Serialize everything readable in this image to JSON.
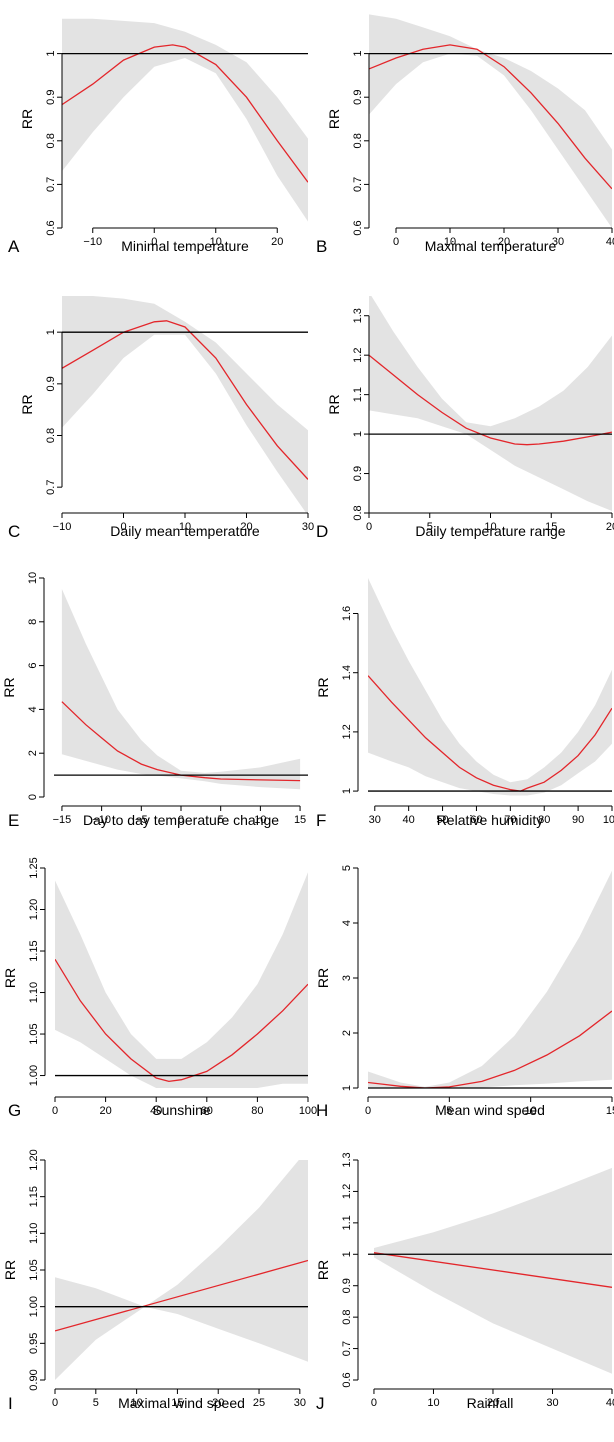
{
  "chart_data": [
    {
      "panel_label": "A",
      "type": "line",
      "xlabel": "Minimal temperature",
      "ylabel": "RR",
      "xlim": [
        -15,
        25
      ],
      "ylim": [
        0.6,
        1.1
      ],
      "reference_y": 1.0,
      "xticks": [
        -10,
        0,
        10,
        20
      ],
      "yticks": [
        0.6,
        0.7,
        0.8,
        0.9,
        1.0
      ],
      "series": [
        {
          "role": "estimate",
          "color": "#e3262b",
          "x": [
            -15,
            -10,
            -5,
            0,
            3,
            5,
            10,
            15,
            20,
            25
          ],
          "y": [
            0.883,
            0.93,
            0.985,
            1.015,
            1.02,
            1.015,
            0.975,
            0.9,
            0.8,
            0.705
          ]
        },
        {
          "role": "ci_upper",
          "color": "#e3e3e3",
          "x": [
            -15,
            -10,
            -5,
            0,
            5,
            10,
            15,
            20,
            25
          ],
          "y": [
            1.08,
            1.08,
            1.075,
            1.07,
            1.05,
            1.02,
            0.98,
            0.9,
            0.805
          ]
        },
        {
          "role": "ci_lower",
          "color": "#e3e3e3",
          "x": [
            -15,
            -10,
            -5,
            0,
            5,
            10,
            15,
            20,
            25
          ],
          "y": [
            0.73,
            0.82,
            0.9,
            0.97,
            0.99,
            0.955,
            0.85,
            0.72,
            0.615
          ]
        }
      ]
    },
    {
      "panel_label": "B",
      "type": "line",
      "xlabel": "Maximal temperature",
      "ylabel": "RR",
      "xlim": [
        -5,
        40
      ],
      "ylim": [
        0.6,
        1.1
      ],
      "reference_y": 1.0,
      "xticks": [
        0,
        10,
        20,
        30,
        40
      ],
      "yticks": [
        0.6,
        0.7,
        0.8,
        0.9,
        1.0
      ],
      "series": [
        {
          "role": "estimate",
          "color": "#e3262b",
          "x": [
            -5,
            0,
            5,
            10,
            15,
            20,
            25,
            30,
            35,
            40
          ],
          "y": [
            0.965,
            0.99,
            1.01,
            1.02,
            1.01,
            0.97,
            0.91,
            0.84,
            0.76,
            0.69
          ]
        },
        {
          "role": "ci_upper",
          "color": "#e3e3e3",
          "x": [
            -5,
            0,
            5,
            10,
            15,
            20,
            25,
            30,
            35,
            40
          ],
          "y": [
            1.09,
            1.08,
            1.06,
            1.04,
            1.01,
            0.99,
            0.96,
            0.92,
            0.87,
            0.78
          ]
        },
        {
          "role": "ci_lower",
          "color": "#e3e3e3",
          "x": [
            -5,
            0,
            5,
            10,
            15,
            20,
            25,
            30,
            35,
            40
          ],
          "y": [
            0.86,
            0.93,
            0.98,
            1.0,
            0.995,
            0.95,
            0.87,
            0.78,
            0.69,
            0.6
          ]
        }
      ]
    },
    {
      "panel_label": "C",
      "type": "line",
      "xlabel": "Daily mean temperature",
      "ylabel": "RR",
      "xlim": [
        -10,
        30
      ],
      "ylim": [
        0.65,
        1.07
      ],
      "reference_y": 1.0,
      "xticks": [
        -10,
        0,
        10,
        20,
        30
      ],
      "yticks": [
        0.7,
        0.8,
        0.9,
        1.0
      ],
      "series": [
        {
          "role": "estimate",
          "color": "#e3262b",
          "x": [
            -10,
            -5,
            0,
            5,
            7,
            10,
            15,
            20,
            25,
            30
          ],
          "y": [
            0.93,
            0.965,
            1.0,
            1.02,
            1.022,
            1.01,
            0.95,
            0.86,
            0.78,
            0.715
          ]
        },
        {
          "role": "ci_upper",
          "color": "#e3e3e3",
          "x": [
            -10,
            -5,
            0,
            5,
            10,
            15,
            20,
            25,
            30
          ],
          "y": [
            1.07,
            1.07,
            1.065,
            1.055,
            1.02,
            0.98,
            0.92,
            0.86,
            0.81
          ]
        },
        {
          "role": "ci_lower",
          "color": "#e3e3e3",
          "x": [
            -10,
            -5,
            0,
            5,
            10,
            15,
            20,
            25,
            30
          ],
          "y": [
            0.815,
            0.88,
            0.95,
            0.995,
            0.995,
            0.92,
            0.82,
            0.73,
            0.645
          ]
        }
      ]
    },
    {
      "panel_label": "D",
      "type": "line",
      "xlabel": "Daily temperature range",
      "ylabel": "RR",
      "xlim": [
        0,
        20
      ],
      "ylim": [
        0.8,
        1.35
      ],
      "reference_y": 1.0,
      "xticks": [
        0,
        5,
        10,
        15,
        20
      ],
      "yticks": [
        0.8,
        0.9,
        1.0,
        1.1,
        1.2,
        1.3
      ],
      "series": [
        {
          "role": "estimate",
          "color": "#e3262b",
          "x": [
            0,
            2,
            4,
            6,
            8,
            10,
            12,
            13,
            14,
            16,
            18,
            20
          ],
          "y": [
            1.2,
            1.15,
            1.1,
            1.055,
            1.015,
            0.99,
            0.975,
            0.973,
            0.975,
            0.982,
            0.993,
            1.005
          ]
        },
        {
          "role": "ci_upper",
          "color": "#e3e3e3",
          "x": [
            0,
            2,
            4,
            6,
            8,
            10,
            12,
            14,
            16,
            18,
            20
          ],
          "y": [
            1.36,
            1.26,
            1.17,
            1.09,
            1.03,
            1.02,
            1.04,
            1.07,
            1.11,
            1.17,
            1.25
          ]
        },
        {
          "role": "ci_lower",
          "color": "#e3e3e3",
          "x": [
            0,
            2,
            4,
            6,
            8,
            10,
            12,
            14,
            16,
            18,
            20
          ],
          "y": [
            1.06,
            1.05,
            1.04,
            1.02,
            1.0,
            0.96,
            0.92,
            0.89,
            0.86,
            0.83,
            0.805
          ]
        }
      ]
    },
    {
      "panel_label": "E",
      "type": "line",
      "xlabel": "Day to day temperature change",
      "ylabel": "RR",
      "xlim": [
        -16,
        16
      ],
      "ylim": [
        0,
        10
      ],
      "reference_y": 1.0,
      "xticks": [
        -15,
        -10,
        -5,
        0,
        5,
        10,
        15
      ],
      "yticks": [
        0,
        2,
        4,
        6,
        8,
        10
      ],
      "series": [
        {
          "role": "estimate",
          "color": "#e3262b",
          "x": [
            -15,
            -12,
            -10,
            -8,
            -5,
            -3,
            0,
            3,
            5,
            10,
            15
          ],
          "y": [
            4.35,
            3.3,
            2.7,
            2.1,
            1.5,
            1.25,
            1.0,
            0.88,
            0.82,
            0.78,
            0.75
          ]
        },
        {
          "role": "ci_upper",
          "color": "#e3e3e3",
          "x": [
            -15,
            -12,
            -10,
            -8,
            -5,
            -3,
            0,
            3,
            5,
            10,
            15
          ],
          "y": [
            9.5,
            7.0,
            5.5,
            4.0,
            2.6,
            1.9,
            1.2,
            1.1,
            1.15,
            1.35,
            1.75
          ]
        },
        {
          "role": "ci_lower",
          "color": "#e3e3e3",
          "x": [
            -15,
            -12,
            -10,
            -8,
            -5,
            -3,
            0,
            3,
            5,
            10,
            15
          ],
          "y": [
            1.95,
            1.65,
            1.45,
            1.25,
            1.05,
            0.98,
            0.85,
            0.72,
            0.6,
            0.45,
            0.35
          ]
        }
      ]
    },
    {
      "panel_label": "F",
      "type": "line",
      "xlabel": "Relative humidity",
      "ylabel": "RR",
      "xlim": [
        28,
        100
      ],
      "ylim": [
        0.98,
        1.72
      ],
      "reference_y": 1.0,
      "xticks": [
        30,
        40,
        50,
        60,
        70,
        80,
        90,
        100
      ],
      "yticks": [
        1.0,
        1.2,
        1.4,
        1.6
      ],
      "series": [
        {
          "role": "estimate",
          "color": "#e3262b",
          "x": [
            28,
            35,
            40,
            45,
            50,
            55,
            60,
            65,
            70,
            73,
            75,
            80,
            85,
            90,
            95,
            100
          ],
          "y": [
            1.39,
            1.3,
            1.24,
            1.18,
            1.13,
            1.08,
            1.045,
            1.02,
            1.005,
            1.0,
            1.01,
            1.03,
            1.07,
            1.12,
            1.19,
            1.28
          ]
        },
        {
          "role": "ci_upper",
          "color": "#e3e3e3",
          "x": [
            28,
            35,
            40,
            45,
            50,
            55,
            60,
            65,
            70,
            75,
            80,
            85,
            90,
            95,
            100
          ],
          "y": [
            1.72,
            1.55,
            1.44,
            1.34,
            1.24,
            1.16,
            1.1,
            1.055,
            1.03,
            1.04,
            1.08,
            1.13,
            1.2,
            1.29,
            1.41
          ]
        },
        {
          "role": "ci_lower",
          "color": "#e3e3e3",
          "x": [
            28,
            35,
            40,
            45,
            50,
            55,
            60,
            65,
            70,
            75,
            80,
            85,
            90,
            95,
            100
          ],
          "y": [
            1.13,
            1.1,
            1.08,
            1.05,
            1.03,
            1.01,
            1.0,
            0.99,
            0.985,
            0.985,
            0.995,
            1.02,
            1.06,
            1.1,
            1.16
          ]
        }
      ]
    },
    {
      "panel_label": "G",
      "type": "line",
      "xlabel": "Sunshine",
      "ylabel": "RR",
      "xlim": [
        0,
        100
      ],
      "ylim": [
        0.985,
        1.25
      ],
      "reference_y": 1.0,
      "xticks": [
        0,
        20,
        40,
        60,
        80,
        100
      ],
      "yticks": [
        1.0,
        1.05,
        1.1,
        1.15,
        1.2,
        1.25
      ],
      "tick_labels_y": [
        "1.00",
        "1.05",
        "1.10",
        "1.15",
        "1.20",
        "1.25"
      ],
      "series": [
        {
          "role": "estimate",
          "color": "#e3262b",
          "x": [
            0,
            10,
            20,
            30,
            40,
            45,
            50,
            60,
            70,
            80,
            90,
            100
          ],
          "y": [
            1.14,
            1.09,
            1.05,
            1.02,
            0.997,
            0.993,
            0.995,
            1.005,
            1.025,
            1.05,
            1.078,
            1.11
          ]
        },
        {
          "role": "ci_upper",
          "color": "#e3e3e3",
          "x": [
            0,
            10,
            20,
            30,
            40,
            50,
            60,
            70,
            80,
            90,
            100
          ],
          "y": [
            1.235,
            1.17,
            1.1,
            1.05,
            1.02,
            1.02,
            1.04,
            1.07,
            1.11,
            1.17,
            1.245
          ]
        },
        {
          "role": "ci_lower",
          "color": "#e3e3e3",
          "x": [
            0,
            10,
            20,
            30,
            40,
            50,
            60,
            70,
            80,
            90,
            100
          ],
          "y": [
            1.055,
            1.04,
            1.02,
            1.0,
            0.985,
            0.975,
            0.978,
            0.98,
            0.985,
            0.99,
            0.99
          ]
        }
      ]
    },
    {
      "panel_label": "H",
      "type": "line",
      "xlabel": "Mean wind speed",
      "ylabel": "RR",
      "xlim": [
        0,
        15
      ],
      "ylim": [
        1,
        5
      ],
      "reference_y": 1.0,
      "xticks": [
        0,
        5,
        10,
        15
      ],
      "yticks": [
        1,
        2,
        3,
        4,
        5
      ],
      "series": [
        {
          "role": "estimate",
          "color": "#e3262b",
          "x": [
            0,
            2,
            3.5,
            5,
            7,
            9,
            11,
            13,
            15
          ],
          "y": [
            1.1,
            1.03,
            1.0,
            1.02,
            1.12,
            1.32,
            1.6,
            1.95,
            2.4
          ]
        },
        {
          "role": "ci_upper",
          "color": "#e3e3e3",
          "x": [
            0,
            2,
            3.5,
            5,
            7,
            9,
            11,
            13,
            15
          ],
          "y": [
            1.3,
            1.1,
            1.02,
            1.1,
            1.4,
            1.95,
            2.75,
            3.75,
            4.95
          ]
        },
        {
          "role": "ci_lower",
          "color": "#e3e3e3",
          "x": [
            0,
            2,
            3.5,
            5,
            7,
            9,
            11,
            13,
            15
          ],
          "y": [
            1.0,
            0.98,
            0.98,
            0.99,
            1.01,
            1.05,
            1.08,
            1.12,
            1.15
          ]
        }
      ]
    },
    {
      "panel_label": "I",
      "type": "line",
      "xlabel": "Maximal wind speed",
      "ylabel": "RR",
      "xlim": [
        0,
        31
      ],
      "ylim": [
        0.9,
        1.2
      ],
      "reference_y": 1.0,
      "xticks": [
        0,
        5,
        10,
        15,
        20,
        25,
        30
      ],
      "yticks": [
        0.9,
        0.95,
        1.0,
        1.05,
        1.1,
        1.15,
        1.2
      ],
      "tick_labels_y": [
        "0.90",
        "0.95",
        "1.00",
        "1.05",
        "1.10",
        "1.15",
        "1.20"
      ],
      "series": [
        {
          "role": "estimate",
          "color": "#e3262b",
          "x": [
            0,
            31
          ],
          "y": [
            0.967,
            1.063
          ]
        },
        {
          "role": "ci_upper",
          "color": "#e3e3e3",
          "x": [
            0,
            5,
            11,
            15,
            20,
            25,
            31
          ],
          "y": [
            1.04,
            1.025,
            1.0,
            1.03,
            1.08,
            1.135,
            1.215
          ]
        },
        {
          "role": "ci_lower",
          "color": "#e3e3e3",
          "x": [
            0,
            5,
            11,
            15,
            20,
            25,
            31
          ],
          "y": [
            0.9,
            0.955,
            1.0,
            0.99,
            0.97,
            0.95,
            0.925
          ]
        }
      ]
    },
    {
      "panel_label": "J",
      "type": "line",
      "xlabel": "Rainfall",
      "ylabel": "RR",
      "xlim": [
        -1,
        40
      ],
      "ylim": [
        0.6,
        1.3
      ],
      "reference_y": 1.0,
      "xticks": [
        0,
        10,
        20,
        30,
        40
      ],
      "yticks": [
        0.6,
        0.7,
        0.8,
        0.9,
        1.0,
        1.1,
        1.2,
        1.3
      ],
      "series": [
        {
          "role": "estimate",
          "color": "#e3262b",
          "x": [
            0,
            40
          ],
          "y": [
            1.005,
            0.895
          ]
        },
        {
          "role": "ci_upper",
          "color": "#e3e3e3",
          "x": [
            0,
            10,
            20,
            30,
            40
          ],
          "y": [
            1.02,
            1.07,
            1.13,
            1.2,
            1.275
          ]
        },
        {
          "role": "ci_lower",
          "color": "#e3e3e3",
          "x": [
            0,
            10,
            20,
            30,
            40
          ],
          "y": [
            0.99,
            0.88,
            0.78,
            0.7,
            0.62
          ]
        }
      ]
    }
  ]
}
